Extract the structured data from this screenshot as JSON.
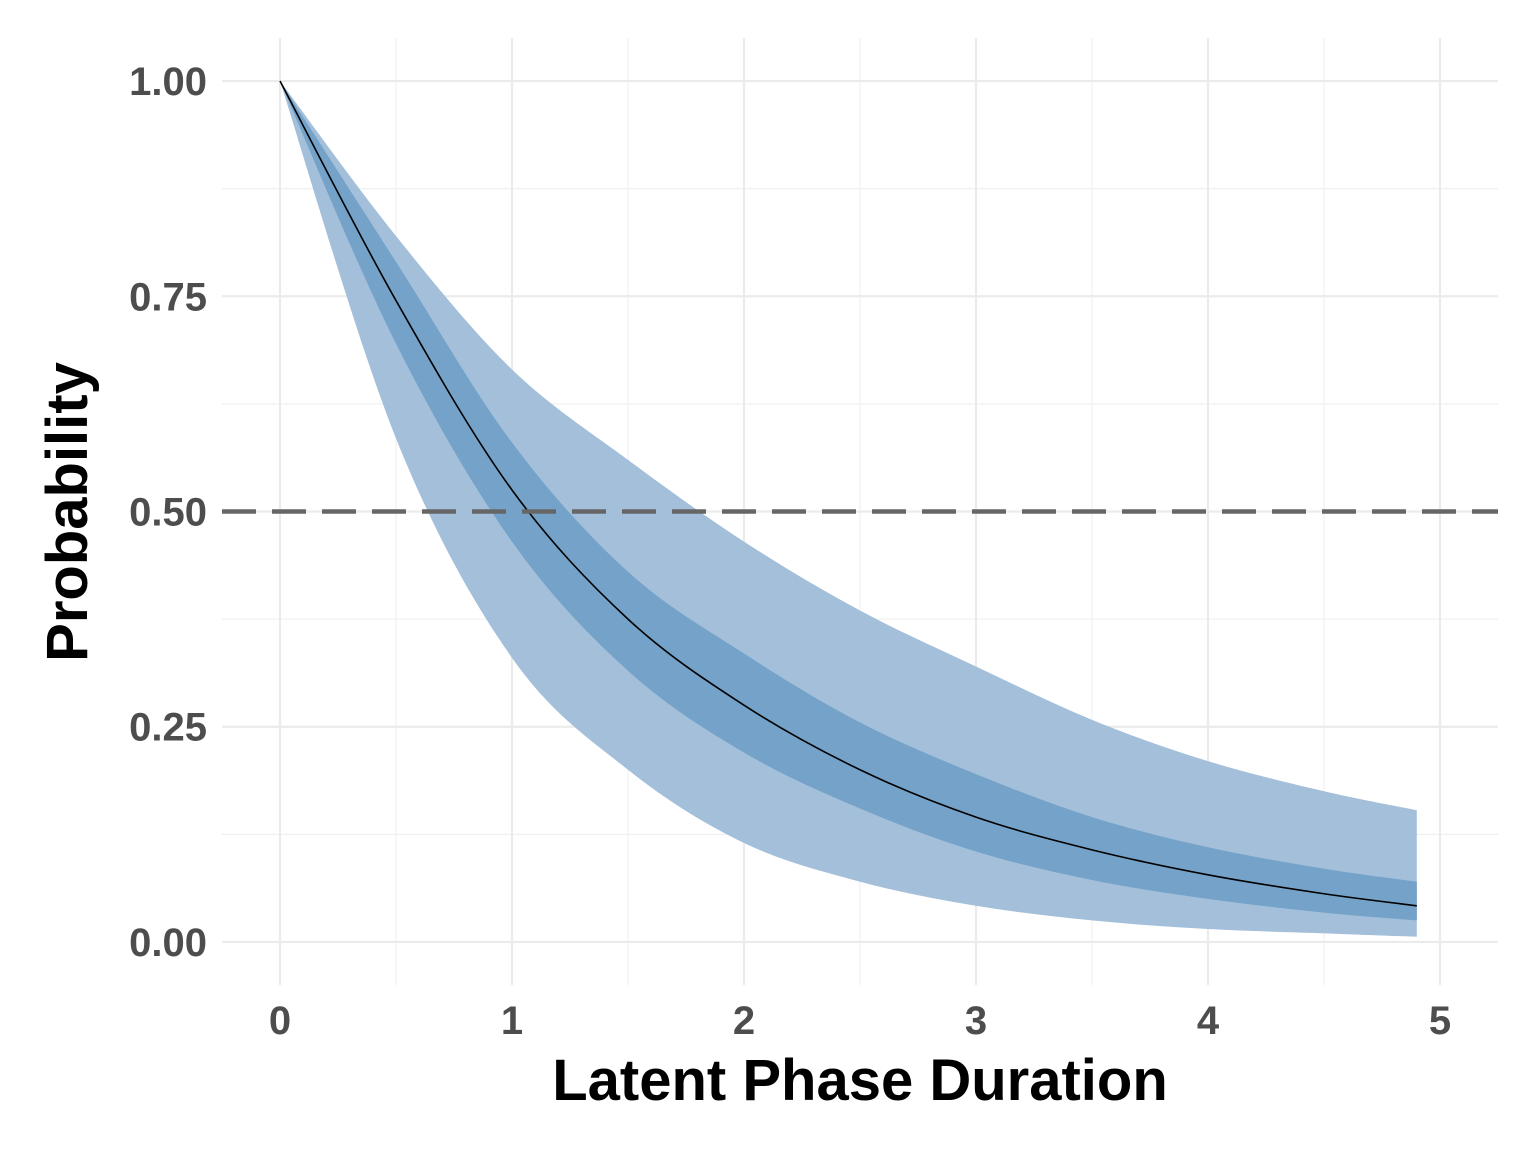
{
  "chart_data": {
    "type": "line",
    "title": "",
    "xlabel": "Latent Phase Duration",
    "ylabel": "Probability",
    "xlim": [
      -0.25,
      5.25
    ],
    "ylim": [
      -0.05,
      1.05
    ],
    "x_ticks": [
      0,
      1,
      2,
      3,
      4,
      5
    ],
    "x_tick_labels": [
      "0",
      "1",
      "2",
      "3",
      "4",
      "5"
    ],
    "y_ticks": [
      0,
      0.25,
      0.5,
      0.75,
      1
    ],
    "y_tick_labels": [
      "0.00",
      "0.25",
      "0.50",
      "0.75",
      "1.00"
    ],
    "grid": true,
    "reference_line": {
      "y": 0.5,
      "style": "dashed",
      "color": "#666666"
    },
    "x": [
      0,
      0.5,
      1,
      1.5,
      2,
      2.5,
      3,
      3.5,
      4,
      4.5,
      4.9
    ],
    "series": [
      {
        "values": [
          1.0,
          0.745,
          0.525,
          0.375,
          0.275,
          0.2,
          0.145,
          0.107,
          0.078,
          0.056,
          0.042
        ],
        "color": "#000000"
      }
    ],
    "bands": [
      {
        "level": "outer",
        "lower": [
          1.0,
          0.585,
          0.33,
          0.2,
          0.115,
          0.07,
          0.042,
          0.025,
          0.015,
          0.01,
          0.006
        ],
        "upper": [
          1.0,
          0.82,
          0.665,
          0.56,
          0.465,
          0.385,
          0.32,
          0.258,
          0.21,
          0.175,
          0.153
        ],
        "color": "#a3bfda"
      },
      {
        "level": "inner",
        "lower": [
          1.0,
          0.695,
          0.465,
          0.315,
          0.22,
          0.155,
          0.105,
          0.072,
          0.05,
          0.034,
          0.025
        ],
        "upper": [
          1.0,
          0.79,
          0.58,
          0.43,
          0.335,
          0.255,
          0.195,
          0.145,
          0.11,
          0.085,
          0.07
        ],
        "color": "#74a2c8"
      }
    ]
  }
}
